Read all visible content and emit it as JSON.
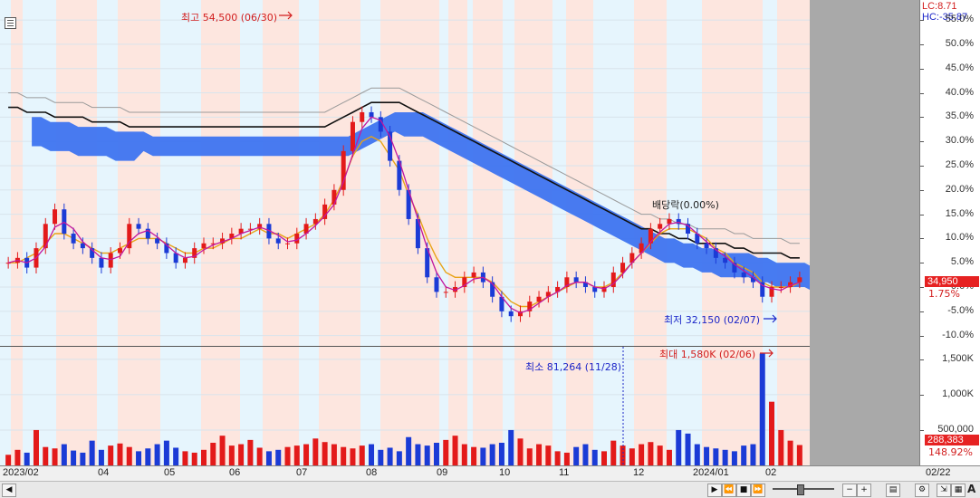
{
  "chart_data": {
    "type": "candlestick",
    "price_pane": {
      "y_axis_ticks": [
        "55.0%",
        "50.0%",
        "45.0%",
        "40.0%",
        "35.0%",
        "30.0%",
        "25.0%",
        "20.0%",
        "15.0%",
        "10.0%",
        "5.0%",
        "0.0%",
        "-5.0%",
        "-10.0%"
      ],
      "y_axis_values": [
        55,
        50,
        45,
        40,
        35,
        30,
        25,
        20,
        15,
        10,
        5,
        0,
        -5,
        -10
      ],
      "ylim": [
        -11,
        58
      ],
      "current_price_tag": "34,950",
      "current_pct_tag": "1.75%",
      "lc_label": "LC:8.71",
      "hc_label": "HC:-35.87",
      "high_annotation": "최고 54,500 (06/30)",
      "low_annotation": "최저 32,150 (02/07)",
      "dividend_annotation": "배당락(0.00%)",
      "close_pct_series": [
        5,
        6,
        4,
        8,
        13,
        16,
        11,
        9,
        8,
        6,
        4,
        7,
        8,
        13,
        12,
        10,
        9,
        7,
        5,
        6,
        8,
        9,
        9,
        10,
        11,
        12,
        12,
        13,
        10,
        9,
        9,
        11,
        13,
        14,
        17,
        20,
        28,
        34,
        36,
        35,
        32,
        26,
        20,
        14,
        8,
        2,
        -1,
        -1,
        0,
        2,
        3,
        1,
        -2,
        -5,
        -6,
        -5,
        -3,
        -2,
        -1,
        0,
        2,
        1,
        0,
        -1,
        0,
        3,
        5,
        7,
        9,
        12,
        13,
        14,
        13,
        11,
        9,
        8,
        6,
        5,
        3,
        2,
        1,
        -2,
        0,
        0,
        1,
        2
      ],
      "ma_short": [
        5,
        5,
        6,
        7,
        9,
        11,
        11,
        10,
        9,
        8,
        7,
        7,
        8,
        9,
        10,
        10,
        10,
        9,
        8,
        7,
        7,
        8,
        8,
        9,
        10,
        10,
        11,
        12,
        11,
        11,
        10,
        11,
        12,
        13,
        15,
        18,
        22,
        27,
        30,
        31,
        30,
        27,
        24,
        19,
        15,
        10,
        6,
        3,
        2,
        2,
        2,
        2,
        1,
        -1,
        -3,
        -4,
        -4,
        -3,
        -2,
        -1,
        0,
        1,
        1,
        0,
        0,
        1,
        3,
        5,
        7,
        9,
        11,
        12,
        12,
        12,
        11,
        10,
        8,
        7,
        5,
        4,
        3,
        1,
        0,
        0,
        0,
        1
      ],
      "ma_long": [
        37,
        37,
        36,
        36,
        36,
        35,
        35,
        35,
        35,
        34,
        34,
        34,
        34,
        33,
        33,
        33,
        33,
        33,
        33,
        33,
        33,
        33,
        33,
        33,
        33,
        33,
        33,
        33,
        33,
        33,
        33,
        33,
        33,
        33,
        33,
        34,
        35,
        36,
        37,
        38,
        38,
        38,
        38,
        37,
        36,
        35,
        34,
        33,
        32,
        31,
        30,
        29,
        28,
        27,
        26,
        25,
        24,
        23,
        22,
        21,
        20,
        19,
        18,
        17,
        16,
        15,
        14,
        13,
        12,
        12,
        11,
        11,
        10,
        10,
        9,
        9,
        9,
        9,
        8,
        8,
        7,
        7,
        7,
        7,
        6,
        6
      ]
    },
    "volume_pane": {
      "y_axis_ticks": [
        "1,500K",
        "1,000K",
        "500,000"
      ],
      "y_axis_values": [
        1500,
        1000,
        500
      ],
      "ylim": [
        0,
        1600
      ],
      "current_volume_tag": "288,383",
      "current_volume_pct_tag": "148.92%",
      "max_annotation": "최대 1,580K (02/06)",
      "min_annotation": "최소 81,264 (11/28)",
      "volumes_k": [
        150,
        220,
        180,
        500,
        260,
        240,
        300,
        210,
        180,
        350,
        220,
        280,
        310,
        260,
        200,
        240,
        300,
        350,
        250,
        200,
        180,
        220,
        320,
        420,
        280,
        300,
        360,
        250,
        200,
        220,
        260,
        280,
        300,
        380,
        330,
        300,
        260,
        240,
        280,
        300,
        220,
        250,
        200,
        400,
        300,
        280,
        320,
        360,
        420,
        300,
        260,
        250,
        300,
        320,
        500,
        380,
        240,
        300,
        280,
        200,
        180,
        260,
        300,
        220,
        200,
        350,
        280,
        240,
        300,
        330,
        280,
        220,
        500,
        450,
        300,
        260,
        240,
        220,
        200,
        280,
        300,
        1580,
        900,
        500,
        350,
        288
      ]
    },
    "date_labels": [
      "2023/02",
      "04",
      "05",
      "06",
      "07",
      "08",
      "09",
      "10",
      "11",
      "12",
      "2024/01",
      "02",
      "02/22"
    ]
  }
}
